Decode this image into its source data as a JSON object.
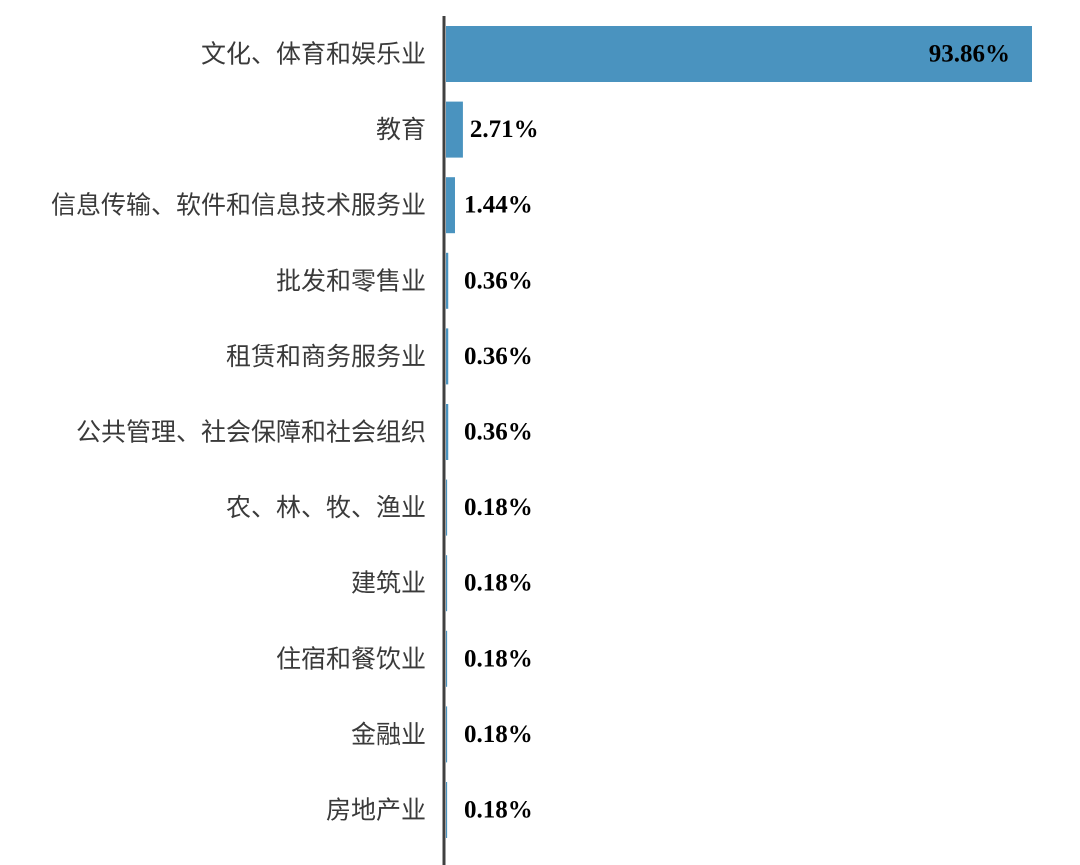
{
  "chart_data": {
    "type": "bar",
    "orientation": "horizontal",
    "title": "",
    "xlabel": "",
    "ylabel": "",
    "categories": [
      "文化、体育和娱乐业",
      "教育",
      "信息传输、软件和信息技术服务业",
      "批发和零售业",
      "租赁和商务服务业",
      "公共管理、社会保障和社会组织",
      "农、林、牧、渔业",
      "建筑业",
      "住宿和餐饮业",
      "金融业",
      "房地产业"
    ],
    "values": [
      93.86,
      2.71,
      1.44,
      0.36,
      0.36,
      0.36,
      0.18,
      0.18,
      0.18,
      0.18,
      0.18
    ],
    "value_labels": [
      "93.86%",
      "2.71%",
      "1.44%",
      "0.36%",
      "0.36%",
      "0.36%",
      "0.18%",
      "0.18%",
      "0.18%",
      "0.18%",
      "0.18%"
    ],
    "unit": "%",
    "xlim": [
      0,
      93.86
    ],
    "grid": false,
    "legend": "none",
    "bar_color": "#4a93bf",
    "axis_color": "#404040"
  }
}
